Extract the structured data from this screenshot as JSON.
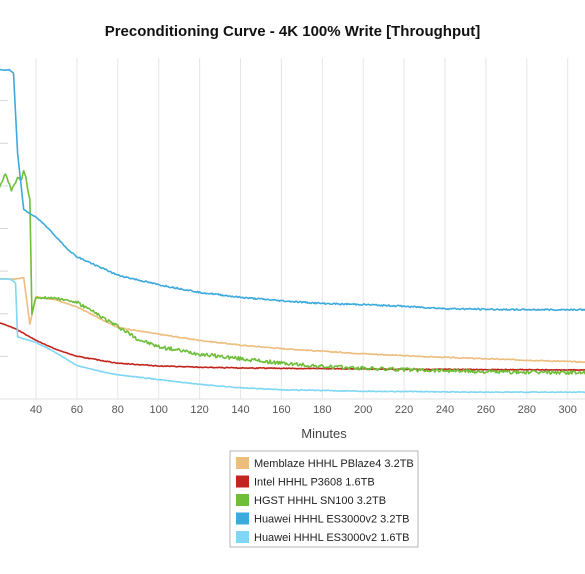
{
  "chart_data": {
    "type": "line",
    "title": "Preconditioning Curve - 4K 100% Write [Throughput]",
    "xlabel": "Minutes",
    "ylabel": "",
    "x_ticks": [
      40,
      60,
      80,
      100,
      120,
      140,
      160,
      180,
      200,
      220,
      240,
      260,
      280,
      300
    ],
    "xlim": [
      22,
      310
    ],
    "ylim": [
      0,
      1
    ],
    "y_axis_labels_visible": false,
    "grid": "vertical",
    "legend_position": "bottom-center",
    "series": [
      {
        "name": "Memblaze HHHL PBlaze4 3.2TB",
        "color": "#EDBD7E",
        "points": [
          [
            22,
            0.352
          ],
          [
            30,
            0.352
          ],
          [
            34,
            0.356
          ],
          [
            37,
            0.22
          ],
          [
            40,
            0.3
          ],
          [
            50,
            0.29
          ],
          [
            60,
            0.27
          ],
          [
            70,
            0.24
          ],
          [
            80,
            0.21
          ],
          [
            100,
            0.19
          ],
          [
            120,
            0.172
          ],
          [
            140,
            0.158
          ],
          [
            160,
            0.148
          ],
          [
            180,
            0.14
          ],
          [
            200,
            0.133
          ],
          [
            220,
            0.127
          ],
          [
            240,
            0.122
          ],
          [
            260,
            0.118
          ],
          [
            280,
            0.114
          ],
          [
            300,
            0.11
          ],
          [
            310,
            0.108
          ]
        ]
      },
      {
        "name": "Intel HHHL P3608 1.6TB",
        "color": "#C1251D",
        "points": [
          [
            22,
            0.224
          ],
          [
            25,
            0.218
          ],
          [
            30,
            0.206
          ],
          [
            40,
            0.172
          ],
          [
            50,
            0.145
          ],
          [
            60,
            0.125
          ],
          [
            70,
            0.115
          ],
          [
            80,
            0.105
          ],
          [
            100,
            0.097
          ],
          [
            120,
            0.093
          ],
          [
            140,
            0.091
          ],
          [
            160,
            0.09
          ],
          [
            180,
            0.089
          ],
          [
            200,
            0.088
          ],
          [
            220,
            0.087
          ],
          [
            240,
            0.087
          ],
          [
            260,
            0.086
          ],
          [
            280,
            0.086
          ],
          [
            300,
            0.085
          ],
          [
            310,
            0.085
          ]
        ]
      },
      {
        "name": "HGST HHHL SN100 3.2TB",
        "color": "#6EBE3A",
        "points": [
          [
            22,
            0.62
          ],
          [
            25,
            0.66
          ],
          [
            28,
            0.612
          ],
          [
            31,
            0.648
          ],
          [
            33,
            0.642
          ],
          [
            34,
            0.67
          ],
          [
            35,
            0.652
          ],
          [
            36,
            0.612
          ],
          [
            37,
            0.586
          ],
          [
            38,
            0.252
          ],
          [
            40,
            0.298
          ],
          [
            50,
            0.296
          ],
          [
            60,
            0.283
          ],
          [
            70,
            0.248
          ],
          [
            80,
            0.213
          ],
          [
            90,
            0.175
          ],
          [
            100,
            0.153
          ],
          [
            120,
            0.132
          ],
          [
            140,
            0.118
          ],
          [
            160,
            0.105
          ],
          [
            180,
            0.095
          ],
          [
            200,
            0.09
          ],
          [
            220,
            0.086
          ],
          [
            240,
            0.084
          ],
          [
            260,
            0.08
          ],
          [
            280,
            0.078
          ],
          [
            300,
            0.078
          ],
          [
            310,
            0.077
          ]
        ]
      },
      {
        "name": "Huawei HHHL ES3000v2 3.2TB",
        "color": "#3DAADE",
        "points": [
          [
            22,
            0.965
          ],
          [
            27,
            0.965
          ],
          [
            29,
            0.955
          ],
          [
            31,
            0.72
          ],
          [
            34,
            0.555
          ],
          [
            40,
            0.533
          ],
          [
            45,
            0.507
          ],
          [
            50,
            0.474
          ],
          [
            55,
            0.442
          ],
          [
            60,
            0.417
          ],
          [
            70,
            0.39
          ],
          [
            80,
            0.363
          ],
          [
            100,
            0.335
          ],
          [
            120,
            0.313
          ],
          [
            140,
            0.298
          ],
          [
            160,
            0.288
          ],
          [
            180,
            0.28
          ],
          [
            200,
            0.277
          ],
          [
            220,
            0.272
          ],
          [
            240,
            0.265
          ],
          [
            260,
            0.263
          ],
          [
            280,
            0.262
          ],
          [
            300,
            0.262
          ],
          [
            310,
            0.262
          ]
        ]
      },
      {
        "name": "Huawei HHHL ES3000v2 1.6TB",
        "color": "#7FD6F5",
        "points": [
          [
            22,
            0.352
          ],
          [
            26,
            0.352
          ],
          [
            28,
            0.35
          ],
          [
            30,
            0.34
          ],
          [
            31,
            0.182
          ],
          [
            40,
            0.166
          ],
          [
            50,
            0.135
          ],
          [
            60,
            0.098
          ],
          [
            70,
            0.083
          ],
          [
            80,
            0.071
          ],
          [
            100,
            0.057
          ],
          [
            120,
            0.043
          ],
          [
            140,
            0.033
          ],
          [
            160,
            0.027
          ],
          [
            180,
            0.025
          ],
          [
            200,
            0.023
          ],
          [
            220,
            0.022
          ],
          [
            240,
            0.021
          ],
          [
            260,
            0.02
          ],
          [
            280,
            0.02
          ],
          [
            300,
            0.02
          ],
          [
            310,
            0.02
          ]
        ]
      }
    ]
  }
}
